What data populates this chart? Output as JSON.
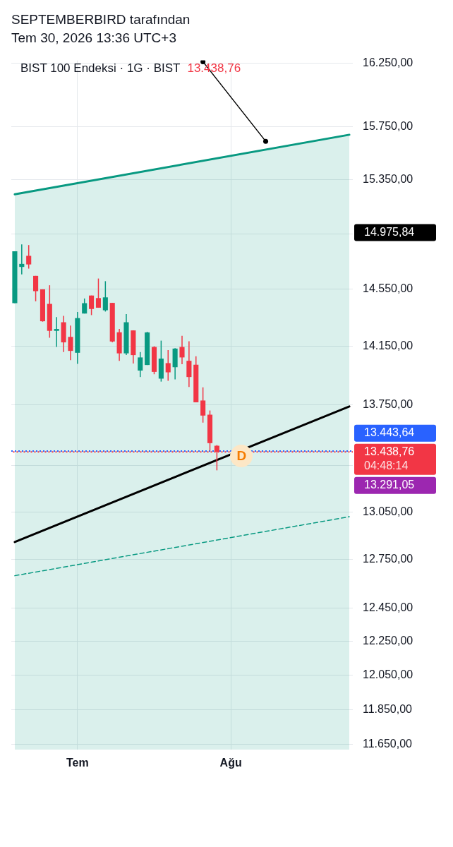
{
  "chart_data": {
    "type": "candlestick",
    "title": "BIST 100 Endeksi · 1G · BIST",
    "subtitle": "13.438,76",
    "annotations": [
      "SEPTEMBERBIRD tarafından",
      "Tem 30, 2026 13:36 UTC+3",
      "D",
      "14.975,84",
      "04:48:14",
      "13.291,05"
    ],
    "categories": [
      null,
      null,
      null,
      null,
      null,
      null,
      null,
      null,
      null,
      "Tem",
      null,
      null,
      null,
      null,
      null,
      null,
      null,
      null,
      null,
      null,
      null,
      null,
      null,
      null,
      null,
      null,
      null,
      null,
      null,
      null,
      null,
      "Ağu",
      null,
      null,
      null,
      null,
      null,
      null,
      null,
      null,
      null,
      null,
      null,
      null,
      null,
      null,
      null,
      null,
      null
    ],
    "ohlc": [
      [
        14451,
        14822,
        14451,
        14822
      ],
      [
        14709,
        14872,
        14656,
        14731
      ],
      [
        14789,
        14867,
        14697,
        14727
      ],
      [
        14645,
        14645,
        14464,
        14536
      ],
      [
        14549,
        14549,
        14321,
        14324
      ],
      [
        14446,
        14578,
        14209,
        14257
      ],
      [
        14257,
        14353,
        14145,
        14270
      ],
      [
        14317,
        14362,
        14110,
        14177
      ],
      [
        14215,
        14294,
        14054,
        14118
      ],
      [
        14105,
        14389,
        14029,
        14346
      ],
      [
        14378,
        14484,
        14378,
        14451
      ],
      [
        14505,
        14505,
        14367,
        14410
      ],
      [
        14487,
        14626,
        14419,
        14419
      ],
      [
        14401,
        14607,
        14392,
        14492
      ],
      [
        14453,
        14453,
        14177,
        14183
      ],
      [
        14247,
        14270,
        14050,
        14101
      ],
      [
        14101,
        14374,
        14089,
        14317
      ],
      [
        14260,
        14260,
        14031,
        14089
      ],
      [
        13983,
        14110,
        13939,
        14073
      ],
      [
        14021,
        14250,
        14021,
        14246
      ],
      [
        14145,
        14150,
        13958,
        13974
      ],
      [
        13928,
        14189,
        13908,
        14065
      ],
      [
        14034,
        14124,
        13913,
        13971
      ],
      [
        14006,
        14137,
        13923,
        14134
      ],
      [
        14145,
        14222,
        14026,
        14073
      ],
      [
        14050,
        14185,
        13872,
        13939
      ],
      [
        14023,
        14081,
        13768,
        13768
      ],
      [
        13780,
        13869,
        13632,
        13679
      ],
      [
        13685,
        13713,
        13446,
        13496
      ],
      [
        13479,
        13483,
        13318,
        13438.76
      ],
      null,
      null,
      null,
      null,
      null,
      null,
      null,
      null,
      null,
      null,
      null,
      null,
      null,
      null,
      null,
      null,
      null,
      null,
      null
    ],
    "colors": [
      "#089981",
      "#089981",
      "#f23645",
      "#f23645",
      "#f23645",
      "#f23645",
      "#089981",
      "#f23645",
      "#f23645",
      "#089981",
      "#089981",
      "#f23645",
      "#f23645",
      "#089981",
      "#f23645",
      "#f23645",
      "#089981",
      "#f23645",
      "#089981",
      "#089981",
      "#f23645",
      "#089981",
      "#f23645",
      "#089981",
      "#f23645",
      "#f23645",
      "#f23645",
      "#f23645",
      "#f23645",
      "#f23645",
      null,
      null,
      null,
      null,
      null,
      null,
      null,
      null,
      null,
      null,
      null,
      null,
      null,
      null,
      null,
      null,
      null,
      null,
      null
    ],
    "series": [
      {
        "type": "area",
        "color": "#089981",
        "values": [
          15240,
          null,
          null,
          null,
          null,
          null,
          null,
          null,
          null,
          null,
          null,
          null,
          null,
          null,
          null,
          null,
          null,
          null,
          null,
          null,
          null,
          null,
          null,
          null,
          null,
          null,
          null,
          null,
          null,
          null,
          null,
          null,
          null,
          null,
          null,
          null,
          null,
          null,
          null,
          null,
          null,
          null,
          null,
          null,
          null,
          null,
          null,
          null,
          15690
        ]
      },
      {
        "type": "line",
        "color": "#000000",
        "values": [
          12860,
          null,
          null,
          null,
          null,
          null,
          null,
          null,
          null,
          null,
          null,
          null,
          null,
          null,
          null,
          null,
          null,
          null,
          null,
          null,
          null,
          null,
          null,
          null,
          null,
          null,
          null,
          null,
          null,
          null,
          null,
          null,
          null,
          null,
          null,
          null,
          null,
          null,
          null,
          null,
          null,
          null,
          null,
          null,
          null,
          null,
          null,
          null,
          13740
        ]
      },
      {
        "type": "line",
        "color": "#089981",
        "line_style": "dashed",
        "values": [
          12650,
          null,
          null,
          null,
          null,
          null,
          null,
          null,
          null,
          null,
          null,
          null,
          null,
          null,
          null,
          null,
          null,
          null,
          null,
          null,
          null,
          null,
          null,
          null,
          null,
          null,
          null,
          null,
          null,
          null,
          null,
          null,
          null,
          null,
          null,
          null,
          null,
          null,
          null,
          null,
          null,
          null,
          null,
          null,
          null,
          null,
          null,
          null,
          13020
        ]
      },
      {
        "type": "line",
        "color": "#000000",
        "marker": "circle",
        "values": [
          null,
          null,
          null,
          null,
          null,
          null,
          null,
          null,
          null,
          null,
          null,
          null,
          null,
          null,
          null,
          null,
          null,
          null,
          null,
          null,
          null,
          null,
          null,
          null,
          null,
          null,
          null,
          16260,
          null,
          null,
          null,
          null,
          null,
          null,
          null,
          null,
          15640,
          null,
          null,
          null,
          null,
          null,
          null,
          null,
          null,
          null,
          null,
          null,
          null
        ]
      }
    ],
    "ylim": [
      11620,
      16270
    ],
    "yticks": [
      {
        "value": 11650,
        "label": "11.650,00"
      },
      {
        "value": 11850,
        "label": "11.850,00"
      },
      {
        "value": 12050,
        "label": "12.050,00"
      },
      {
        "value": 12250,
        "label": "12.250,00"
      },
      {
        "value": 12450,
        "label": "12.450,00"
      },
      {
        "value": 12750,
        "label": "12.750,00"
      },
      {
        "value": 13050,
        "label": "13.050,00"
      },
      {
        "value": 13350,
        "label": null
      },
      {
        "value": 13750,
        "label": "13.750,00"
      },
      {
        "value": 14150,
        "label": "14.150,00"
      },
      {
        "value": 14550,
        "label": "14.550,00"
      },
      {
        "value": 14950,
        "label": null
      },
      {
        "value": 15350,
        "label": "15.350,00"
      },
      {
        "value": 15750,
        "label": "15.750,00"
      },
      {
        "value": 16250,
        "label": "16.250,00"
      }
    ],
    "log": true,
    "grid": true,
    "ref_lines": [
      {
        "axis": "y",
        "value": 13443.64,
        "label": "13.443,64",
        "color": "#2962ff",
        "line_style": "dotted"
      },
      {
        "axis": "y",
        "value": 13438.76,
        "label": "13.438,76",
        "color": "#f23645",
        "line_style": "dotted"
      }
    ]
  }
}
